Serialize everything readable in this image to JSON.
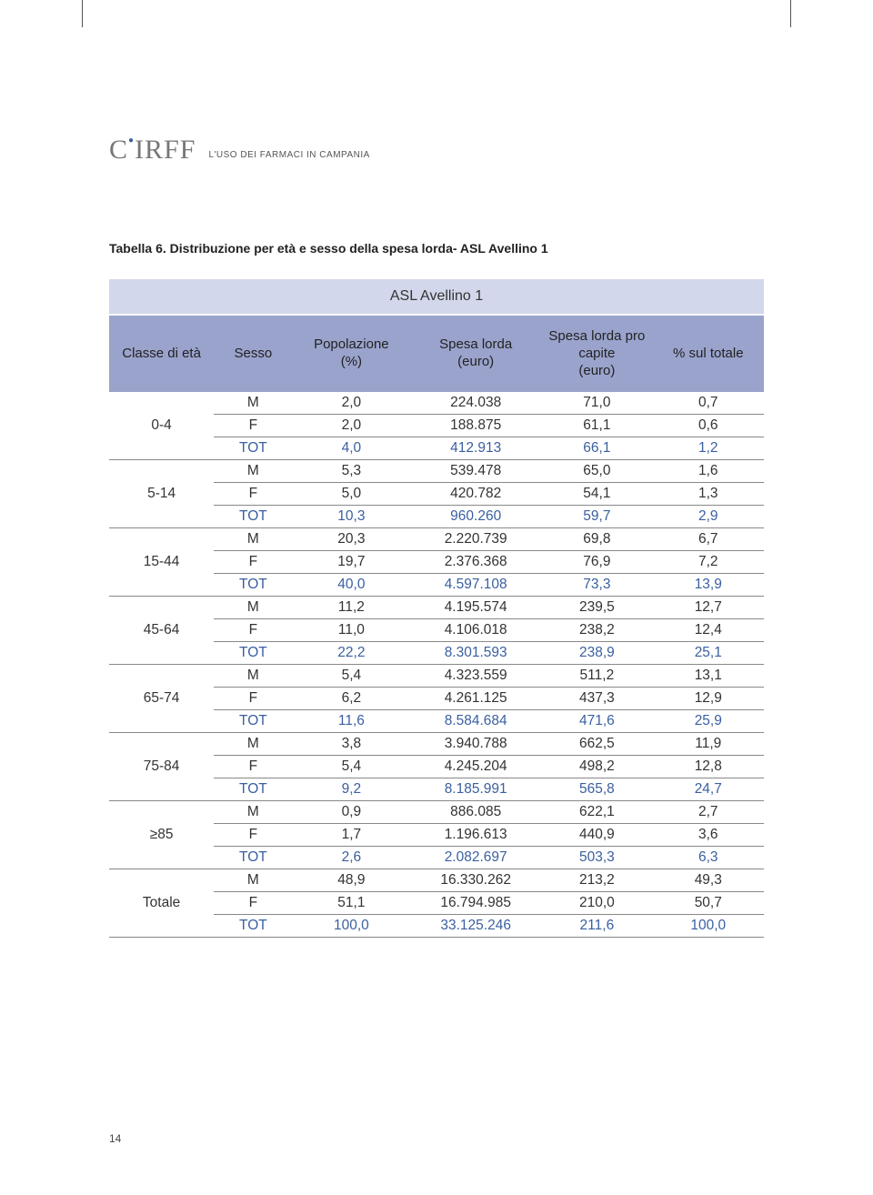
{
  "header_text": "L'USO DEI FARMACI IN CAMPANIA",
  "logo_text": "CIRFF",
  "caption": "Tabella 6. Distribuzione per età e sesso della spesa lorda- ASL Avellino 1",
  "table_title": "ASL Avellino 1",
  "columns": [
    "Classe di età",
    "Sesso",
    "Popolazione (%)",
    "Spesa lorda (euro)",
    "Spesa lorda pro capite (euro)",
    "% sul totale"
  ],
  "col_classes": [
    "col-age",
    "col-sesso",
    "col-pop",
    "col-spesa",
    "col-cap",
    "col-pct"
  ],
  "groups": [
    {
      "age": "0-4",
      "rows": [
        {
          "sesso": "M",
          "pop": "2,0",
          "spesa": "224.038",
          "cap": "71,0",
          "pct": "0,7"
        },
        {
          "sesso": "F",
          "pop": "2,0",
          "spesa": "188.875",
          "cap": "61,1",
          "pct": "0,6"
        },
        {
          "sesso": "TOT",
          "pop": "4,0",
          "spesa": "412.913",
          "cap": "66,1",
          "pct": "1,2"
        }
      ]
    },
    {
      "age": "5-14",
      "rows": [
        {
          "sesso": "M",
          "pop": "5,3",
          "spesa": "539.478",
          "cap": "65,0",
          "pct": "1,6"
        },
        {
          "sesso": "F",
          "pop": "5,0",
          "spesa": "420.782",
          "cap": "54,1",
          "pct": "1,3"
        },
        {
          "sesso": "TOT",
          "pop": "10,3",
          "spesa": "960.260",
          "cap": "59,7",
          "pct": "2,9"
        }
      ]
    },
    {
      "age": "15-44",
      "rows": [
        {
          "sesso": "M",
          "pop": "20,3",
          "spesa": "2.220.739",
          "cap": "69,8",
          "pct": "6,7"
        },
        {
          "sesso": "F",
          "pop": "19,7",
          "spesa": "2.376.368",
          "cap": "76,9",
          "pct": "7,2"
        },
        {
          "sesso": "TOT",
          "pop": "40,0",
          "spesa": "4.597.108",
          "cap": "73,3",
          "pct": "13,9"
        }
      ]
    },
    {
      "age": "45-64",
      "rows": [
        {
          "sesso": "M",
          "pop": "11,2",
          "spesa": "4.195.574",
          "cap": "239,5",
          "pct": "12,7"
        },
        {
          "sesso": "F",
          "pop": "11,0",
          "spesa": "4.106.018",
          "cap": "238,2",
          "pct": "12,4"
        },
        {
          "sesso": "TOT",
          "pop": "22,2",
          "spesa": "8.301.593",
          "cap": "238,9",
          "pct": "25,1"
        }
      ]
    },
    {
      "age": "65-74",
      "rows": [
        {
          "sesso": "M",
          "pop": "5,4",
          "spesa": "4.323.559",
          "cap": "511,2",
          "pct": "13,1"
        },
        {
          "sesso": "F",
          "pop": "6,2",
          "spesa": "4.261.125",
          "cap": "437,3",
          "pct": "12,9"
        },
        {
          "sesso": "TOT",
          "pop": "11,6",
          "spesa": "8.584.684",
          "cap": "471,6",
          "pct": "25,9"
        }
      ]
    },
    {
      "age": "75-84",
      "rows": [
        {
          "sesso": "M",
          "pop": "3,8",
          "spesa": "3.940.788",
          "cap": "662,5",
          "pct": "11,9"
        },
        {
          "sesso": "F",
          "pop": "5,4",
          "spesa": "4.245.204",
          "cap": "498,2",
          "pct": "12,8"
        },
        {
          "sesso": "TOT",
          "pop": "9,2",
          "spesa": "8.185.991",
          "cap": "565,8",
          "pct": "24,7"
        }
      ]
    },
    {
      "age": "≥85",
      "rows": [
        {
          "sesso": "M",
          "pop": "0,9",
          "spesa": "886.085",
          "cap": "622,1",
          "pct": "2,7"
        },
        {
          "sesso": "F",
          "pop": "1,7",
          "spesa": "1.196.613",
          "cap": "440,9",
          "pct": "3,6"
        },
        {
          "sesso": "TOT",
          "pop": "2,6",
          "spesa": "2.082.697",
          "cap": "503,3",
          "pct": "6,3"
        }
      ]
    },
    {
      "age": "Totale",
      "rows": [
        {
          "sesso": "M",
          "pop": "48,9",
          "spesa": "16.330.262",
          "cap": "213,2",
          "pct": "49,3"
        },
        {
          "sesso": "F",
          "pop": "51,1",
          "spesa": "16.794.985",
          "cap": "210,0",
          "pct": "50,7"
        },
        {
          "sesso": "TOT",
          "pop": "100,0",
          "spesa": "33.125.246",
          "cap": "211,6",
          "pct": "100,0"
        }
      ]
    }
  ],
  "page_number": "14",
  "colors": {
    "header_light": "#d3d7eb",
    "header_dark": "#9aa3cc",
    "tot_text": "#3a5fa0",
    "rule": "#888888"
  }
}
